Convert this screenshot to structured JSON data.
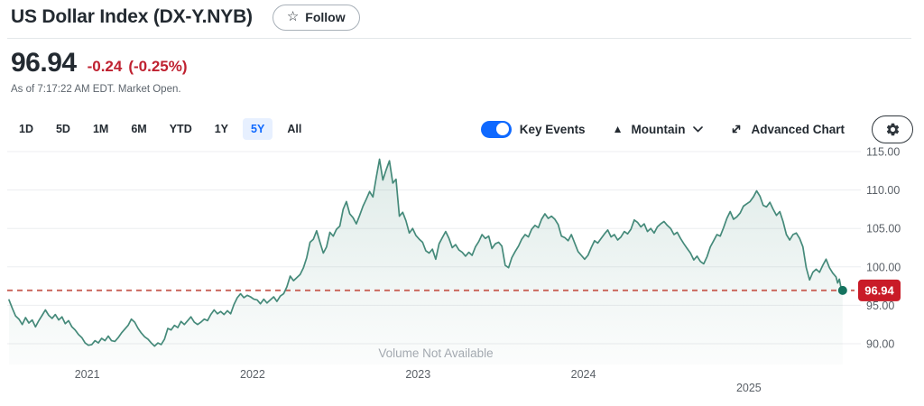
{
  "header": {
    "title": "US Dollar Index (DX-Y.NYB)",
    "follow_label": "Follow",
    "follow_icon": "☆"
  },
  "quote": {
    "price": "96.94",
    "change": "-0.24",
    "change_pct": "(-0.25%)",
    "as_of": "As of 7:17:22 AM EDT. Market Open."
  },
  "toolbar": {
    "ranges": [
      {
        "label": "1D",
        "selected": false
      },
      {
        "label": "5D",
        "selected": false
      },
      {
        "label": "1M",
        "selected": false
      },
      {
        "label": "6M",
        "selected": false
      },
      {
        "label": "YTD",
        "selected": false
      },
      {
        "label": "1Y",
        "selected": false
      },
      {
        "label": "5Y",
        "selected": true
      },
      {
        "label": "All",
        "selected": false
      }
    ],
    "key_events_label": "Key Events",
    "key_events_on": true,
    "chart_type_icon": "▲",
    "chart_type_label": "Mountain",
    "advanced_label": "Advanced Chart"
  },
  "colors": {
    "accent_blue": "#0f69ff",
    "selected_tab_bg": "#e7f0ff",
    "down_red": "#bf2130",
    "badge_red": "#c91b28",
    "line_teal": "#458a7a",
    "dot_teal": "#15735f",
    "dashed_red": "#cb6a60",
    "grid_gray": "#ecedf0",
    "axis_text": "#5a6067",
    "muted_text": "#a3a9b0"
  },
  "chart_data": {
    "type": "area",
    "title": "US Dollar Index (DX-Y.NYB) 5Y mountain chart",
    "legend": false,
    "grid": true,
    "ylim": [
      88,
      116
    ],
    "x_range_years": [
      2020.5,
      2025.54
    ],
    "y_ticks": [
      115,
      110,
      105,
      100,
      95,
      90
    ],
    "y_tick_labels": [
      "115.00",
      "110.00",
      "105.00",
      "100.00",
      "95.00",
      "90.00"
    ],
    "x_labels": [
      "2021",
      "2022",
      "2023",
      "2024",
      "2025"
    ],
    "current_value": 96.94,
    "current_label": "96.94",
    "volume_note": "Volume Not Available",
    "series": [
      {
        "name": "DX-Y.NYB",
        "points": [
          [
            2020.5,
            95.7
          ],
          [
            2020.52,
            94.6
          ],
          [
            2020.54,
            93.6
          ],
          [
            2020.56,
            93.2
          ],
          [
            2020.58,
            92.5
          ],
          [
            2020.6,
            93.4
          ],
          [
            2020.62,
            92.7
          ],
          [
            2020.64,
            93.1
          ],
          [
            2020.66,
            92.2
          ],
          [
            2020.68,
            93.0
          ],
          [
            2020.7,
            93.7
          ],
          [
            2020.72,
            94.4
          ],
          [
            2020.74,
            93.7
          ],
          [
            2020.76,
            93.3
          ],
          [
            2020.78,
            93.8
          ],
          [
            2020.8,
            93.1
          ],
          [
            2020.82,
            93.5
          ],
          [
            2020.84,
            92.6
          ],
          [
            2020.86,
            93.0
          ],
          [
            2020.88,
            92.2
          ],
          [
            2020.9,
            91.8
          ],
          [
            2020.92,
            91.2
          ],
          [
            2020.94,
            90.8
          ],
          [
            2020.96,
            90.1
          ],
          [
            2020.98,
            89.8
          ],
          [
            2021.0,
            89.9
          ],
          [
            2021.02,
            90.4
          ],
          [
            2021.04,
            90.1
          ],
          [
            2021.06,
            90.7
          ],
          [
            2021.08,
            90.4
          ],
          [
            2021.1,
            91.0
          ],
          [
            2021.12,
            90.4
          ],
          [
            2021.14,
            90.3
          ],
          [
            2021.16,
            90.8
          ],
          [
            2021.18,
            91.4
          ],
          [
            2021.2,
            91.9
          ],
          [
            2021.22,
            92.4
          ],
          [
            2021.24,
            93.2
          ],
          [
            2021.26,
            92.8
          ],
          [
            2021.28,
            92.0
          ],
          [
            2021.3,
            91.4
          ],
          [
            2021.32,
            90.9
          ],
          [
            2021.34,
            90.6
          ],
          [
            2021.36,
            90.1
          ],
          [
            2021.38,
            89.7
          ],
          [
            2021.4,
            90.1
          ],
          [
            2021.42,
            89.9
          ],
          [
            2021.44,
            90.6
          ],
          [
            2021.46,
            92.0
          ],
          [
            2021.48,
            91.8
          ],
          [
            2021.5,
            92.4
          ],
          [
            2021.52,
            92.1
          ],
          [
            2021.54,
            92.9
          ],
          [
            2021.56,
            92.5
          ],
          [
            2021.58,
            93.0
          ],
          [
            2021.6,
            93.5
          ],
          [
            2021.62,
            92.8
          ],
          [
            2021.64,
            92.5
          ],
          [
            2021.66,
            92.8
          ],
          [
            2021.68,
            93.2
          ],
          [
            2021.7,
            93.0
          ],
          [
            2021.72,
            93.8
          ],
          [
            2021.74,
            94.4
          ],
          [
            2021.76,
            93.9
          ],
          [
            2021.78,
            94.2
          ],
          [
            2021.8,
            93.8
          ],
          [
            2021.82,
            94.3
          ],
          [
            2021.84,
            93.9
          ],
          [
            2021.86,
            95.1
          ],
          [
            2021.88,
            96.0
          ],
          [
            2021.9,
            96.5
          ],
          [
            2021.92,
            96.0
          ],
          [
            2021.94,
            96.3
          ],
          [
            2021.96,
            96.1
          ],
          [
            2021.98,
            95.8
          ],
          [
            2022.0,
            95.7
          ],
          [
            2022.02,
            95.2
          ],
          [
            2022.04,
            95.8
          ],
          [
            2022.06,
            95.3
          ],
          [
            2022.08,
            95.7
          ],
          [
            2022.1,
            96.1
          ],
          [
            2022.12,
            95.5
          ],
          [
            2022.14,
            96.2
          ],
          [
            2022.16,
            96.5
          ],
          [
            2022.18,
            97.4
          ],
          [
            2022.2,
            98.8
          ],
          [
            2022.22,
            98.2
          ],
          [
            2022.24,
            98.6
          ],
          [
            2022.26,
            99.0
          ],
          [
            2022.28,
            99.9
          ],
          [
            2022.3,
            101.2
          ],
          [
            2022.32,
            103.2
          ],
          [
            2022.34,
            103.6
          ],
          [
            2022.36,
            104.7
          ],
          [
            2022.38,
            103.2
          ],
          [
            2022.4,
            101.8
          ],
          [
            2022.42,
            102.6
          ],
          [
            2022.44,
            104.5
          ],
          [
            2022.46,
            104.0
          ],
          [
            2022.48,
            104.9
          ],
          [
            2022.5,
            105.3
          ],
          [
            2022.52,
            107.5
          ],
          [
            2022.54,
            108.5
          ],
          [
            2022.56,
            106.9
          ],
          [
            2022.58,
            106.4
          ],
          [
            2022.6,
            105.6
          ],
          [
            2022.62,
            106.7
          ],
          [
            2022.64,
            107.9
          ],
          [
            2022.66,
            108.8
          ],
          [
            2022.68,
            109.8
          ],
          [
            2022.7,
            109.1
          ],
          [
            2022.72,
            111.6
          ],
          [
            2022.74,
            114.0
          ],
          [
            2022.76,
            111.3
          ],
          [
            2022.78,
            112.6
          ],
          [
            2022.8,
            113.8
          ],
          [
            2022.82,
            110.9
          ],
          [
            2022.84,
            111.4
          ],
          [
            2022.86,
            106.6
          ],
          [
            2022.88,
            107.1
          ],
          [
            2022.9,
            106.0
          ],
          [
            2022.92,
            104.4
          ],
          [
            2022.94,
            105.0
          ],
          [
            2022.96,
            104.1
          ],
          [
            2022.98,
            103.6
          ],
          [
            2023.0,
            103.2
          ],
          [
            2023.02,
            102.1
          ],
          [
            2023.04,
            101.8
          ],
          [
            2023.06,
            102.3
          ],
          [
            2023.08,
            101.0
          ],
          [
            2023.1,
            103.0
          ],
          [
            2023.12,
            103.8
          ],
          [
            2023.14,
            104.6
          ],
          [
            2023.16,
            103.7
          ],
          [
            2023.18,
            102.5
          ],
          [
            2023.2,
            102.9
          ],
          [
            2023.22,
            102.2
          ],
          [
            2023.24,
            101.9
          ],
          [
            2023.26,
            101.4
          ],
          [
            2023.28,
            101.9
          ],
          [
            2023.3,
            101.5
          ],
          [
            2023.32,
            102.6
          ],
          [
            2023.34,
            103.3
          ],
          [
            2023.36,
            104.2
          ],
          [
            2023.38,
            103.7
          ],
          [
            2023.4,
            104.0
          ],
          [
            2023.42,
            102.4
          ],
          [
            2023.44,
            103.0
          ],
          [
            2023.46,
            103.2
          ],
          [
            2023.48,
            102.7
          ],
          [
            2023.5,
            100.2
          ],
          [
            2023.52,
            99.9
          ],
          [
            2023.54,
            101.2
          ],
          [
            2023.56,
            102.0
          ],
          [
            2023.58,
            102.7
          ],
          [
            2023.6,
            103.6
          ],
          [
            2023.62,
            104.2
          ],
          [
            2023.64,
            103.9
          ],
          [
            2023.66,
            104.9
          ],
          [
            2023.68,
            105.4
          ],
          [
            2023.7,
            105.1
          ],
          [
            2023.72,
            106.2
          ],
          [
            2023.74,
            106.9
          ],
          [
            2023.76,
            106.3
          ],
          [
            2023.78,
            106.6
          ],
          [
            2023.8,
            106.2
          ],
          [
            2023.82,
            105.5
          ],
          [
            2023.84,
            104.0
          ],
          [
            2023.86,
            103.8
          ],
          [
            2023.88,
            103.4
          ],
          [
            2023.9,
            104.2
          ],
          [
            2023.92,
            103.1
          ],
          [
            2023.94,
            102.0
          ],
          [
            2023.96,
            101.5
          ],
          [
            2023.98,
            101.0
          ],
          [
            2024.0,
            101.5
          ],
          [
            2024.02,
            102.5
          ],
          [
            2024.04,
            103.4
          ],
          [
            2024.06,
            103.1
          ],
          [
            2024.08,
            103.7
          ],
          [
            2024.1,
            104.3
          ],
          [
            2024.12,
            104.8
          ],
          [
            2024.14,
            103.9
          ],
          [
            2024.16,
            104.2
          ],
          [
            2024.18,
            103.5
          ],
          [
            2024.2,
            103.9
          ],
          [
            2024.22,
            104.6
          ],
          [
            2024.24,
            104.3
          ],
          [
            2024.26,
            104.9
          ],
          [
            2024.28,
            106.1
          ],
          [
            2024.3,
            105.8
          ],
          [
            2024.32,
            105.2
          ],
          [
            2024.34,
            105.6
          ],
          [
            2024.36,
            104.6
          ],
          [
            2024.38,
            105.0
          ],
          [
            2024.4,
            104.4
          ],
          [
            2024.42,
            105.2
          ],
          [
            2024.44,
            105.6
          ],
          [
            2024.46,
            105.9
          ],
          [
            2024.48,
            105.4
          ],
          [
            2024.5,
            105.0
          ],
          [
            2024.52,
            104.2
          ],
          [
            2024.54,
            104.5
          ],
          [
            2024.56,
            103.7
          ],
          [
            2024.58,
            103.0
          ],
          [
            2024.6,
            102.4
          ],
          [
            2024.62,
            101.8
          ],
          [
            2024.64,
            100.9
          ],
          [
            2024.66,
            101.4
          ],
          [
            2024.68,
            100.7
          ],
          [
            2024.7,
            100.4
          ],
          [
            2024.72,
            101.3
          ],
          [
            2024.74,
            102.6
          ],
          [
            2024.76,
            103.4
          ],
          [
            2024.78,
            104.2
          ],
          [
            2024.8,
            104.0
          ],
          [
            2024.82,
            105.1
          ],
          [
            2024.84,
            106.3
          ],
          [
            2024.86,
            107.2
          ],
          [
            2024.88,
            106.2
          ],
          [
            2024.9,
            106.5
          ],
          [
            2024.92,
            107.0
          ],
          [
            2024.94,
            107.9
          ],
          [
            2024.96,
            108.2
          ],
          [
            2024.98,
            108.5
          ],
          [
            2025.0,
            109.1
          ],
          [
            2025.02,
            109.9
          ],
          [
            2025.04,
            109.2
          ],
          [
            2025.06,
            108.0
          ],
          [
            2025.08,
            107.8
          ],
          [
            2025.1,
            108.4
          ],
          [
            2025.12,
            107.5
          ],
          [
            2025.14,
            106.7
          ],
          [
            2025.16,
            107.2
          ],
          [
            2025.18,
            105.9
          ],
          [
            2025.2,
            104.2
          ],
          [
            2025.22,
            103.5
          ],
          [
            2025.24,
            104.2
          ],
          [
            2025.26,
            104.4
          ],
          [
            2025.28,
            103.7
          ],
          [
            2025.3,
            102.6
          ],
          [
            2025.32,
            99.9
          ],
          [
            2025.34,
            98.3
          ],
          [
            2025.36,
            99.3
          ],
          [
            2025.38,
            99.7
          ],
          [
            2025.4,
            99.3
          ],
          [
            2025.42,
            100.2
          ],
          [
            2025.44,
            101.0
          ],
          [
            2025.46,
            99.9
          ],
          [
            2025.48,
            99.2
          ],
          [
            2025.5,
            98.7
          ],
          [
            2025.51,
            97.9
          ],
          [
            2025.52,
            98.4
          ],
          [
            2025.53,
            97.3
          ],
          [
            2025.54,
            96.94
          ]
        ]
      }
    ]
  }
}
